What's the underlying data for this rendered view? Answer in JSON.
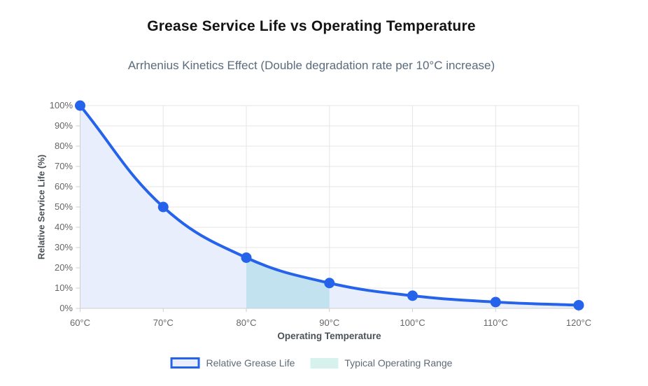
{
  "title": "Grease Service Life vs Operating Temperature",
  "subtitle": "Arrhenius Kinetics Effect (Double degradation rate per 10°C increase)",
  "chart_data": {
    "type": "line",
    "x_labels": [
      "60°C",
      "70°C",
      "80°C",
      "90°C",
      "100°C",
      "110°C",
      "120°C"
    ],
    "x_values": [
      60,
      70,
      80,
      90,
      100,
      110,
      120
    ],
    "series": [
      {
        "name": "Relative Grease Life",
        "values": [
          100,
          50,
          25,
          12.5,
          6.25,
          3.125,
          1.5625
        ],
        "style": "smooth line with filled area and round point markers"
      }
    ],
    "highlight_range": {
      "name": "Typical Operating Range",
      "from": 80,
      "to": 90,
      "note": "shaded band under the curve between 80°C and 90°C"
    },
    "xlabel": "Operating Temperature",
    "ylabel": "Relative Service Life (%)",
    "ylim": [
      0,
      100
    ],
    "y_tick_step": 10,
    "y_tick_labels": [
      "0%",
      "10%",
      "20%",
      "30%",
      "40%",
      "50%",
      "60%",
      "70%",
      "80%",
      "90%",
      "100%"
    ],
    "grid": true,
    "legend_position": "bottom",
    "colors": {
      "line": "#2563EB",
      "marker": "#2563EB",
      "area_fill": "#E8EEFB",
      "range_fill": "#C3E2F0",
      "legend_range_fill": "#D7F1ED",
      "grid": "#E5E5E5",
      "axis_line": "#CFCFCF",
      "tick_text": "#666666",
      "axis_title": "#4B5257",
      "title": "#141414",
      "subtitle": "#5A6B7C",
      "legend_text": "#5F6A76",
      "background": "#FFFFFF"
    }
  },
  "legend": {
    "items": [
      {
        "label": "Relative Grease Life",
        "swatch": "blue-bordered lavender box"
      },
      {
        "label": "Typical Operating Range",
        "swatch": "pale teal box"
      }
    ]
  }
}
